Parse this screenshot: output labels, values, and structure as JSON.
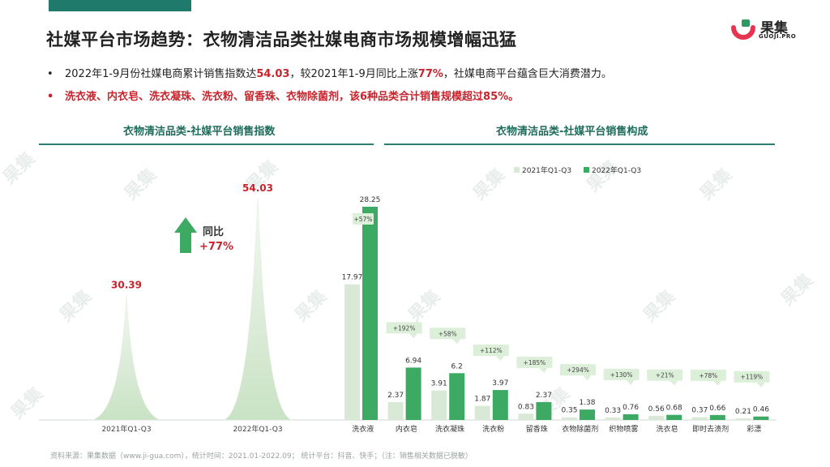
{
  "title": "社媒平台市场趋势：衣物清洁品类社媒电商市场规模增幅迅猛",
  "logo": {
    "cn": "果集",
    "en": "GUOJI.PRO",
    "colors": [
      "#e8344e",
      "#2e9a62"
    ]
  },
  "watermark": "果集",
  "bullets": {
    "b1_pre": "2022年1-9月份社媒电商累计销售指数达",
    "b1_v1": "54.03",
    "b1_mid": "，较2021年1-9月同比上涨",
    "b1_v2": "77%",
    "b1_post": "，社媒电商平台蕴含巨大消费潜力。",
    "b2": "洗衣液、内衣皂、洗衣凝珠、洗衣粉、留香珠、衣物除菌剂，该6种品类合计销售规模超过85%。"
  },
  "footer": "资料来源：果集数据（www.ji-gua.com），统计时间：2021.01-2022.09；   统计平台：抖音、快手；（注：销售相关数据已脱敏）",
  "colors": {
    "accent": "#1f7a6c",
    "green": "#3daa64",
    "light_green": "#d8ead6",
    "red": "#c8242d"
  },
  "chart_data": [
    {
      "type": "bar",
      "title": "衣物清洁品类-社媒平台销售指数",
      "categories": [
        "2021年Q1-Q3",
        "2022年Q1-Q3"
      ],
      "values": [
        30.39,
        54.03
      ],
      "annotation": {
        "label": "同比",
        "value": "+77%"
      }
    },
    {
      "type": "bar",
      "title": "衣物清洁品类-社媒平台销售构成",
      "legend_position": "top",
      "categories": [
        "洗衣液",
        "内衣皂",
        "洗衣凝珠",
        "洗衣粉",
        "留香珠",
        "衣物除菌剂",
        "织物喷雾",
        "洗衣皂",
        "即时去渍剂",
        "彩漂"
      ],
      "series": [
        {
          "name": "2021年Q1-Q3",
          "values": [
            17.97,
            2.37,
            3.91,
            1.87,
            0.83,
            0.35,
            0.33,
            0.56,
            0.37,
            0.21
          ]
        },
        {
          "name": "2022年Q1-Q3",
          "values": [
            28.25,
            6.94,
            6.2,
            3.97,
            2.37,
            1.38,
            0.76,
            0.68,
            0.66,
            0.46
          ]
        }
      ],
      "growth": [
        "+57%",
        "+192%",
        "+58%",
        "+112%",
        "+185%",
        "+294%",
        "+130%",
        "+21%",
        "+78%",
        "+119%"
      ]
    }
  ]
}
